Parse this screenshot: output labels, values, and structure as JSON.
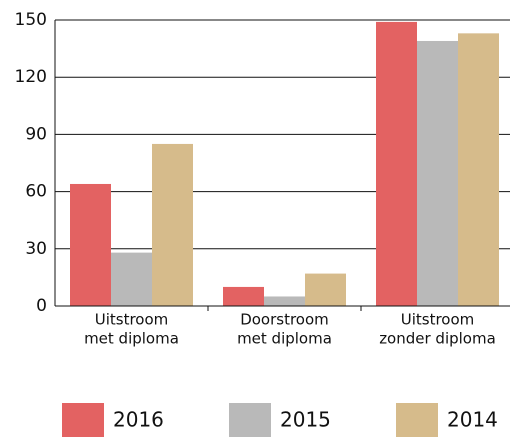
{
  "chart_data": {
    "type": "bar",
    "categories": [
      [
        "Uitstroom",
        "met diploma"
      ],
      [
        "Doorstroom",
        "met diploma"
      ],
      [
        "Uitstroom",
        "zonder diploma"
      ]
    ],
    "series": [
      {
        "name": "2016",
        "color": "#e36262",
        "values": [
          64,
          10,
          149
        ]
      },
      {
        "name": "2015",
        "color": "#b9b9b9",
        "values": [
          28,
          5,
          139
        ]
      },
      {
        "name": "2014",
        "color": "#d6bb8b",
        "values": [
          85,
          17,
          143
        ]
      }
    ],
    "ylim": [
      0,
      150
    ],
    "yticks": [
      0,
      30,
      60,
      90,
      120,
      150
    ],
    "grid": true,
    "legend": "bottom"
  }
}
